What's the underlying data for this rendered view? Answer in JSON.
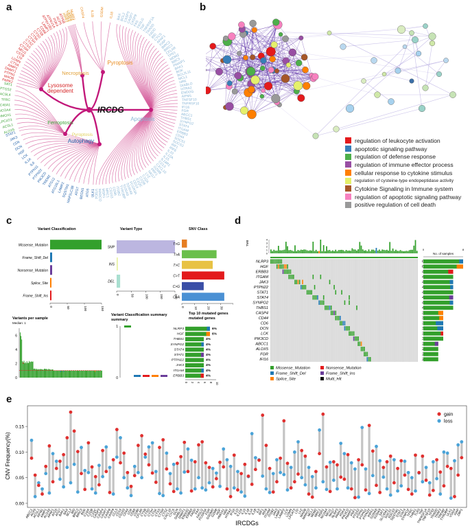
{
  "panels": {
    "a": "a",
    "b": "b",
    "c": "c",
    "d": "d",
    "e": "e"
  },
  "panel_a": {
    "center_label": "IRCDG",
    "categories": [
      {
        "name": "Pyroptosis",
        "color": "#e98b1f"
      },
      {
        "name": "Necroptosis",
        "color": "#e2a23b"
      },
      {
        "name": "Lysosome dependent",
        "color": "#d62728"
      },
      {
        "name": "Ferroptosis",
        "color": "#3fa43a"
      },
      {
        "name": "Autophagy",
        "color": "#1f5fa8"
      },
      {
        "name": "Apoptosis",
        "color": "#8ab6d6"
      }
    ],
    "genes_red": [
      "PARK2",
      "MAOB",
      "PTPN1",
      "DNMT1",
      "AIMP1",
      "CTSA",
      "LGMN",
      "LTF",
      "CSTB",
      "NEU1",
      "CTSW",
      "CTSS",
      "CTSZ",
      "CTSH",
      "CTSK",
      "CTSD",
      "CTSB",
      "CD68",
      "LAMP1",
      "ATP6V1B2",
      "ATP6V1A",
      "PDK4",
      "ACP5",
      "ATP5B"
    ],
    "genes_orange": [
      "NLRP3",
      "CASP4",
      "IL1B",
      "GSDMD",
      "IL18"
    ],
    "genes_necro": [
      "RIPK1",
      "TLR3",
      "TRAF2",
      "CASP8",
      "ZBP1"
    ],
    "genes_green": [
      "ALOX5",
      "ACSL1",
      "LPCAT3",
      "HMOX1",
      "NCOA4",
      "SLC40A1",
      "TFRC",
      "ACSL4",
      "PTGS2",
      "SAT1"
    ],
    "genes_blue": [
      "ULK1",
      "ATG5",
      "BECN1",
      "ATG7",
      "MAP1LC3B",
      "SQSTM1",
      "LAMP2",
      "ATG16L1",
      "ATG12",
      "TREM2",
      "PIK3CD",
      "PTPN22",
      "PTPN11",
      "IL6",
      "IL1A",
      "LCK",
      "HGF",
      "DCN",
      "CD6",
      "JAK3",
      "STAT1"
    ],
    "genes_light": [
      "BAX",
      "BCL2",
      "CASP3",
      "CASP7",
      "CASP9",
      "FAS",
      "FASLG",
      "TNF",
      "TNFRSF1A",
      "TRADD",
      "FADD",
      "BID",
      "CYCS",
      "APAF1",
      "XIAP",
      "BIRC2",
      "BIRC3",
      "CFLAR",
      "TP53",
      "MDM2",
      "BBC3",
      "PMAIP1",
      "BAK1",
      "BOK",
      "BCL2L11",
      "MCL1",
      "HRK",
      "DIABLO",
      "HTRA2",
      "ENDOG",
      "AIFM1",
      "TNFSF10",
      "TNFRSF10B",
      "IFI16",
      "FGR",
      "ABCC1",
      "THBS1",
      "SYNPO2",
      "STAT4",
      "ITGAM",
      "ERBB3",
      "CD44",
      "SOCS1",
      "SOCS3",
      "IRF1",
      "IRF8",
      "IL10",
      "IL12A",
      "IL15",
      "IL18R1",
      "CCL5",
      "CXCL10",
      "GZMB",
      "PRF1",
      "NKG7",
      "LYZ",
      "C1QA",
      "C1QB",
      "C1QC",
      "CD14",
      "FCGR3A",
      "S100A8",
      "S100A9",
      "TYROBP",
      "ITGB2",
      "CD86",
      "CD163",
      "MRC1",
      "MSR1",
      "MARCO",
      "VSIG4"
    ]
  },
  "panel_b": {
    "legend": [
      {
        "label": "regulation of leukocyte activation",
        "color": "#e41a1c"
      },
      {
        "label": "apoptotic signaling pathway",
        "color": "#377eb8"
      },
      {
        "label": "regulation of defense response",
        "color": "#4daf4a"
      },
      {
        "label": "regulation of immune effector process",
        "color": "#984ea3"
      },
      {
        "label": "cellular response to cytokine stimulus",
        "color": "#ff7f00"
      },
      {
        "label": "regulation of cysteine-type endopeptidase activity",
        "color": "#e5f06b",
        "small": true
      },
      {
        "label": "Cytokine Signaling in Immune system",
        "color": "#a65628"
      },
      {
        "label": "regulation of apoptotic signaling pathway",
        "color": "#f781bf"
      },
      {
        "label": "positive regulation of cell death",
        "color": "#999999"
      }
    ]
  },
  "panel_c": {
    "variant_classification": {
      "title": "Variant Classification",
      "categories": [
        "Missense_Mutation",
        "Frame_Shift_Del",
        "Nonsense_Mutation",
        "Splice_Site",
        "Frame_Shift_Ins"
      ],
      "values": [
        150,
        6,
        6,
        4,
        4
      ],
      "colors": [
        "#33a02c",
        "#1f78b4",
        "#6a3d9a",
        "#ff7f00",
        "#e31a1c"
      ],
      "ticks": [
        0,
        50,
        100,
        150
      ]
    },
    "variant_type": {
      "title": "Variant Type",
      "categories": [
        "SNP",
        "INS",
        "DEL"
      ],
      "values": [
        200,
        4,
        12
      ],
      "colors": [
        "#bcb6e0",
        "#e8f2a0",
        "#a9dfd0"
      ],
      "ticks": [
        0,
        50,
        100,
        150,
        200
      ]
    },
    "snv_class": {
      "title": "SNV Class",
      "categories": [
        "T>G",
        "T>A",
        "T>C",
        "C>T",
        "C>G",
        "C>A"
      ],
      "values": [
        4,
        27,
        24,
        33,
        17,
        33
      ],
      "colors": [
        "#e67e22",
        "#6abf4b",
        "#e8c244",
        "#e31a1c",
        "#3a4ea6",
        "#4a90d4"
      ],
      "ticks": [
        0,
        10,
        20,
        30,
        40
      ]
    },
    "variants_per_sample": {
      "title": "Variants per sample",
      "subtitle": "Median: 1",
      "yticks": [
        0,
        2,
        4,
        6
      ]
    },
    "summary": {
      "title": "Variant Classification summary",
      "yticks": [
        0,
        1
      ]
    },
    "top10": {
      "title": "Top 10 mutated genes",
      "genes": [
        "NLRP3",
        "HGF",
        "THBS1",
        "SYNPO2",
        "STAT4",
        "STAT1",
        "PTPN22",
        "JAK3",
        "ITGAM",
        "ERBB3"
      ],
      "labels": [
        "6%",
        "6%",
        "4%",
        "4%",
        "4%",
        "4%",
        "4%",
        "4%",
        "4%",
        "4%"
      ],
      "xticks": [
        0,
        2,
        4,
        6,
        8,
        10
      ]
    }
  },
  "panel_d": {
    "tmb_label": "TMB",
    "tmb_ticks": [
      "0",
      "1",
      "2",
      "3",
      "4"
    ],
    "genes": [
      "NLRP3",
      "HGF",
      "ERBB3",
      "ITGAM",
      "JAK3",
      "PTPN22",
      "STAT1",
      "STAT4",
      "SYNPO2",
      "THBS1",
      "CASP4",
      "CD44",
      "CD6",
      "DCN",
      "LCK",
      "PIK3CD",
      "ABCC1",
      "ALOX5",
      "FGR",
      "IFI16"
    ],
    "pcts": [
      "6%",
      "6%",
      "4%",
      "4%",
      "4%",
      "4%",
      "4%",
      "4%",
      "4%",
      "4%",
      "3%",
      "3%",
      "3%",
      "3%",
      "3%",
      "3%",
      "2%",
      "2%",
      "2%",
      "2%"
    ],
    "counts": [
      8,
      8,
      6,
      6,
      6,
      6,
      6,
      6,
      6,
      6,
      4,
      4,
      4,
      4,
      4,
      4,
      3,
      3,
      3,
      3
    ],
    "right_axis_label": "No. of samples",
    "right_ticks": [
      "0",
      "8"
    ],
    "legend": [
      {
        "label": "Missense_Mutation",
        "color": "#33a02c"
      },
      {
        "label": "Nonsense_Mutation",
        "color": "#e31a1c"
      },
      {
        "label": "Frame_Shift_Del",
        "color": "#1f78b4"
      },
      {
        "label": "Frame_Shift_Ins",
        "color": "#6a3d9a"
      },
      {
        "label": "Splice_Site",
        "color": "#ff7f00"
      },
      {
        "label": "Multi_Hit",
        "color": "#111111"
      }
    ]
  },
  "chart_data": {
    "type": "scatter",
    "title": "",
    "xlabel": "IRCDGs",
    "ylabel": "CNV Frequency(%)",
    "ylim": [
      0,
      0.185
    ],
    "yticks": [
      "0.00",
      "0.05",
      "0.10",
      "0.15"
    ],
    "legend": [
      {
        "name": "gain",
        "color": "#e0302f"
      },
      {
        "name": "loss",
        "color": "#4aa3d8"
      }
    ],
    "categories": [
      "ABCC1",
      "ACP5",
      "ACSL1",
      "AIFM1",
      "AIMP1",
      "ALOX5",
      "APAF1",
      "ATG5",
      "ATG7",
      "BAK1",
      "BAX",
      "BCL2",
      "BID",
      "BIRC2",
      "BIRC3",
      "BOK",
      "C1QA",
      "C1QB",
      "C1QC",
      "CASP3",
      "CASP4",
      "CASP7",
      "CASP8",
      "CASP9",
      "CCL5",
      "CD14",
      "CD163",
      "CD44",
      "CD6",
      "CD68",
      "CD86",
      "CFLAR",
      "CTSB",
      "CTSD",
      "CTSH",
      "CTSK",
      "CTSS",
      "CTSW",
      "CTSZ",
      "CXCL10",
      "CYCS",
      "DCN",
      "DIABLO",
      "DNMT1",
      "ENDOG",
      "ERBB3",
      "FADD",
      "FAS",
      "FASLG",
      "FCGR3A",
      "FGR",
      "GSDMD",
      "GZMB",
      "HGF",
      "HMOX1",
      "HRK",
      "HTRA2",
      "IFI16",
      "IL10",
      "IL12A",
      "IL15",
      "IL18",
      "IL1A",
      "IL1B",
      "IL6",
      "IRF1",
      "IRF8",
      "ITGAM",
      "ITGB2",
      "JAK3",
      "LAMP1",
      "LAMP2",
      "LCK",
      "LGMN",
      "LPCAT3",
      "LTF",
      "LYZ",
      "MAOB",
      "MARCO",
      "MCL1",
      "MDM2",
      "MRC1",
      "MSR1",
      "NCOA4",
      "NEU1",
      "NKG7",
      "NLRP3",
      "PARK2",
      "PDK4",
      "PIK3CD",
      "PMAIP1",
      "PRF1",
      "PTGS2",
      "PTPN1",
      "PTPN11",
      "PTPN22",
      "RIPK1",
      "S100A8",
      "S100A9",
      "SAT1",
      "SLC40A1",
      "SOCS1",
      "SOCS3",
      "SQSTM1",
      "STAT1",
      "STAT4",
      "SYNPO2",
      "TFRC",
      "THBS1",
      "TLR3",
      "TNF",
      "TNFRSF1A",
      "TNFSF10",
      "TP53",
      "TRADD",
      "TRAF2",
      "TREM2",
      "TYROBP",
      "ULK1",
      "VSIG4",
      "XIAP",
      "ZBP1"
    ],
    "series": [
      {
        "name": "gain",
        "values": [
          0.088,
          0.055,
          0.035,
          0.018,
          0.072,
          0.112,
          0.042,
          0.068,
          0.082,
          0.095,
          0.128,
          0.178,
          0.141,
          0.101,
          0.058,
          0.027,
          0.118,
          0.071,
          0.052,
          0.036,
          0.103,
          0.062,
          0.021,
          0.085,
          0.144,
          0.079,
          0.098,
          0.06,
          0.033,
          0.054,
          0.113,
          0.132,
          0.096,
          0.075,
          0.059,
          0.041,
          0.109,
          0.124,
          0.067,
          0.038,
          0.023,
          0.078,
          0.091,
          0.119,
          0.062,
          0.024,
          0.081,
          0.114,
          0.12,
          0.079,
          0.07,
          0.032,
          0.048,
          0.08,
          0.071,
          0.028,
          0.013,
          0.094,
          0.026,
          0.058,
          0.076,
          0.053,
          0.037,
          0.066,
          0.084,
          0.172,
          0.113,
          0.068,
          0.022,
          0.042,
          0.088,
          0.161,
          0.078,
          0.03,
          0.042,
          0.057,
          0.103,
          0.092,
          0.018,
          0.012,
          0.062,
          0.097,
          0.174,
          0.071,
          0.023,
          0.081,
          0.075,
          0.051,
          0.047,
          0.095,
          0.028,
          0.011,
          0.085,
          0.075,
          0.026,
          0.152,
          0.102,
          0.035,
          0.021,
          0.07,
          0.081,
          0.092,
          0.04,
          0.068,
          0.083,
          0.055,
          0.027,
          0.018,
          0.094,
          0.06,
          0.092,
          0.045,
          0.016,
          0.025,
          0.085,
          0.061,
          0.034,
          0.072,
          0.068,
          0.013,
          0.055,
          0.089
        ]
      },
      {
        "name": "loss",
        "values": [
          0.123,
          0.013,
          0.04,
          0.028,
          0.058,
          0.02,
          0.097,
          0.082,
          0.047,
          0.032,
          0.07,
          0.04,
          0.076,
          0.022,
          0.109,
          0.064,
          0.06,
          0.028,
          0.02,
          0.074,
          0.052,
          0.11,
          0.07,
          0.018,
          0.09,
          0.128,
          0.05,
          0.03,
          0.015,
          0.072,
          0.06,
          0.05,
          0.09,
          0.11,
          0.118,
          0.062,
          0.019,
          0.015,
          0.098,
          0.058,
          0.076,
          0.028,
          0.02,
          0.061,
          0.106,
          0.084,
          0.028,
          0.05,
          0.03,
          0.026,
          0.04,
          0.068,
          0.059,
          0.033,
          0.106,
          0.085,
          0.072,
          0.03,
          0.062,
          0.022,
          0.014,
          0.052,
          0.136,
          0.089,
          0.085,
          0.053,
          0.028,
          0.021,
          0.058,
          0.085,
          0.06,
          0.056,
          0.026,
          0.07,
          0.1,
          0.12,
          0.05,
          0.036,
          0.07,
          0.052,
          0.03,
          0.143,
          0.042,
          0.027,
          0.08,
          0.045,
          0.028,
          0.117,
          0.097,
          0.03,
          0.079,
          0.067,
          0.012,
          0.148,
          0.067,
          0.019,
          0.054,
          0.111,
          0.083,
          0.051,
          0.028,
          0.016,
          0.085,
          0.024,
          0.034,
          0.082,
          0.06,
          0.05,
          0.024,
          0.059,
          0.042,
          0.07,
          0.04,
          0.081,
          0.048,
          0.018,
          0.1,
          0.098,
          0.01,
          0.083,
          0.114,
          0.12
        ]
      }
    ]
  }
}
